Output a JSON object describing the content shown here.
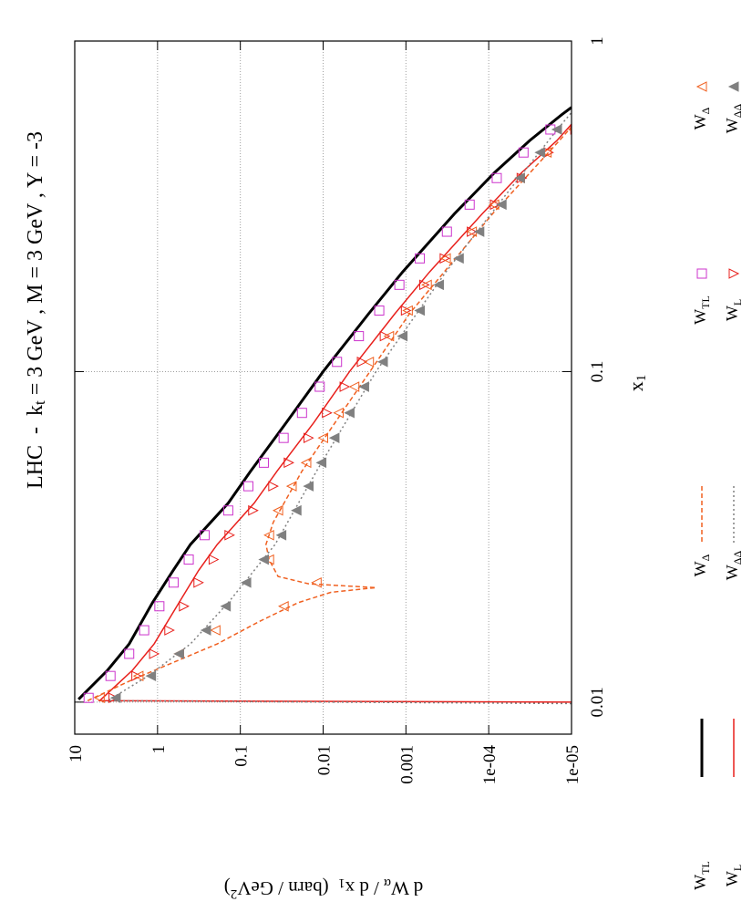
{
  "chart_data": {
    "type": "line",
    "title": [
      "LHC  -  k",
      "t",
      " = 3 GeV , M = 3 GeV , Y = -3"
    ],
    "title_style": [
      "n",
      "sub",
      "n"
    ],
    "xlabel": [
      "x",
      "1"
    ],
    "xlabel_style": [
      "n",
      "sub"
    ],
    "ylabel": [
      "d W",
      "α",
      " / d x",
      "1",
      "  (barn / GeV",
      "2",
      ")"
    ],
    "ylabel_style": [
      "n",
      "sub",
      "n",
      "sub",
      "n",
      "sup",
      "n"
    ],
    "log_x": true,
    "log_y": true,
    "grid": true,
    "xlim": [
      0.008,
      1
    ],
    "ylim": [
      1e-05,
      10
    ],
    "xticks": [
      0.01,
      0.1,
      1
    ],
    "yticks": [
      10,
      1,
      0.1,
      0.01,
      0.001,
      {
        "value": 0.0001,
        "label": "1e-04"
      },
      {
        "value": 1e-05,
        "label": "1e-05"
      }
    ],
    "series": [
      {
        "name": "W",
        "name_sub": "TL",
        "style": "line",
        "color": "#000000",
        "x": [
          0.0102,
          0.0125,
          0.015,
          0.02,
          0.025,
          0.03,
          0.04,
          0.05,
          0.07,
          0.1,
          0.15,
          0.2,
          0.3,
          0.4,
          0.5,
          0.6,
          0.63
        ],
        "values": [
          9,
          4,
          2.2,
          1.15,
          0.65,
          0.4,
          0.14,
          0.075,
          0.028,
          0.01,
          0.0028,
          0.0011,
          0.00026,
          8.5e-05,
          3.2e-05,
          1.3e-05,
          1e-05
        ]
      },
      {
        "name": "W",
        "name_sub": "L",
        "style": "line",
        "color": "#e8201c",
        "x": [
          0.01,
          0.0101,
          0.0125,
          0.015,
          0.02,
          0.025,
          0.03,
          0.04,
          0.05,
          0.07,
          0.1,
          0.15,
          0.2,
          0.3,
          0.4,
          0.5,
          0.56
        ],
        "values": [
          1e-05,
          5,
          2,
          1.1,
          0.55,
          0.32,
          0.19,
          0.068,
          0.036,
          0.013,
          0.0048,
          0.00135,
          0.00052,
          0.00012,
          4e-05,
          1.5e-05,
          1e-05
        ]
      },
      {
        "name": "W",
        "name_sub": "Δ",
        "style": "dashed",
        "color": "#f06020",
        "x": [
          0.0101,
          0.0117,
          0.015,
          0.0175,
          0.02,
          0.0215,
          0.0222,
          0.0228,
          0.024,
          0.027,
          0.03,
          0.035,
          0.05,
          0.08,
          0.15,
          0.3,
          0.5,
          0.55
        ],
        "values": [
          7,
          2,
          0.19,
          0.06,
          0.02,
          0.008,
          0.0023,
          0.015,
          0.035,
          0.045,
          0.049,
          0.04,
          0.018,
          0.005,
          0.0009,
          9e-05,
          1.4e-05,
          1e-05
        ]
      },
      {
        "name": "W",
        "name_sub": "ΔΔ",
        "style": "dotted",
        "color": "#808080",
        "x": [
          0.0099,
          0.0101,
          0.012,
          0.015,
          0.02,
          0.03,
          0.05,
          0.1,
          0.2,
          0.37,
          0.55,
          0.65
        ],
        "values": [
          1e-05,
          4,
          1.3,
          0.4,
          0.14,
          0.038,
          0.012,
          0.0023,
          0.00033,
          4.9e-05,
          1.4e-05,
          8e-06
        ]
      },
      {
        "name": "W",
        "name_sub": "TL",
        "style": "square",
        "color": "#cc33cc",
        "x": [
          0.0103,
          0.012,
          0.014,
          0.0165,
          0.0195,
          0.023,
          0.027,
          0.032,
          0.038,
          0.045,
          0.053,
          0.063,
          0.075,
          0.09,
          0.107,
          0.128,
          0.153,
          0.183,
          0.22,
          0.265,
          0.32,
          0.385,
          0.46,
          0.54
        ],
        "values": [
          6.8,
          3.7,
          2.2,
          1.45,
          0.95,
          0.64,
          0.42,
          0.27,
          0.14,
          0.08,
          0.052,
          0.03,
          0.018,
          0.011,
          0.0068,
          0.0037,
          0.0021,
          0.0012,
          0.00068,
          0.00032,
          0.00017,
          8e-05,
          3.8e-05,
          1.8e-05
        ]
      },
      {
        "name": "W",
        "name_sub": "L",
        "style": "tri-down",
        "color": "#e8201c",
        "x": [
          0.0103,
          0.012,
          0.014,
          0.0165,
          0.0195,
          0.023,
          0.027,
          0.032,
          0.038,
          0.045,
          0.053,
          0.063,
          0.075,
          0.09,
          0.107,
          0.128,
          0.153,
          0.183,
          0.22,
          0.265,
          0.32,
          0.385,
          0.46,
          0.54
        ],
        "values": [
          3.4,
          1.8,
          1.1,
          0.72,
          0.48,
          0.32,
          0.21,
          0.135,
          0.07,
          0.04,
          0.026,
          0.015,
          0.009,
          0.0055,
          0.0034,
          0.0018,
          0.001,
          0.0006,
          0.00034,
          0.00016,
          8.4e-05,
          4e-05,
          1.9e-05,
          9e-06
        ]
      },
      {
        "name": "W",
        "name_sub": "Δ",
        "style": "tri-up",
        "color": "#f06020",
        "x": [
          0.0103,
          0.012,
          0.014,
          0.0165,
          0.0195,
          0.023,
          0.027,
          0.032,
          0.038,
          0.045,
          0.053,
          0.063,
          0.075,
          0.09,
          0.107,
          0.128,
          0.153,
          0.183,
          0.22,
          0.265,
          0.32,
          0.385,
          0.46,
          0.54
        ],
        "values": [
          5,
          1.7,
          0.55,
          0.2,
          0.03,
          0.012,
          0.045,
          0.045,
          0.035,
          0.024,
          0.016,
          0.01,
          0.0065,
          0.0042,
          0.0028,
          0.0016,
          0.00095,
          0.00056,
          0.00033,
          0.00016,
          8.6e-05,
          4.2e-05,
          2e-05,
          9.5e-06
        ]
      },
      {
        "name": "W",
        "name_sub": "ΔΔ",
        "style": "tri-up-filled",
        "color": "#808080",
        "x": [
          0.0103,
          0.012,
          0.014,
          0.0165,
          0.0195,
          0.023,
          0.027,
          0.032,
          0.038,
          0.045,
          0.053,
          0.063,
          0.075,
          0.09,
          0.107,
          0.128,
          0.153,
          0.183,
          0.22,
          0.265,
          0.32,
          0.385,
          0.46,
          0.54
        ],
        "values": [
          3.2,
          1.2,
          0.55,
          0.26,
          0.15,
          0.085,
          0.052,
          0.032,
          0.021,
          0.015,
          0.0105,
          0.0073,
          0.0048,
          0.0032,
          0.0019,
          0.0011,
          0.00068,
          0.0004,
          0.00023,
          0.00013,
          7e-05,
          4.2e-05,
          2.4e-05,
          1.5e-05
        ]
      }
    ]
  }
}
